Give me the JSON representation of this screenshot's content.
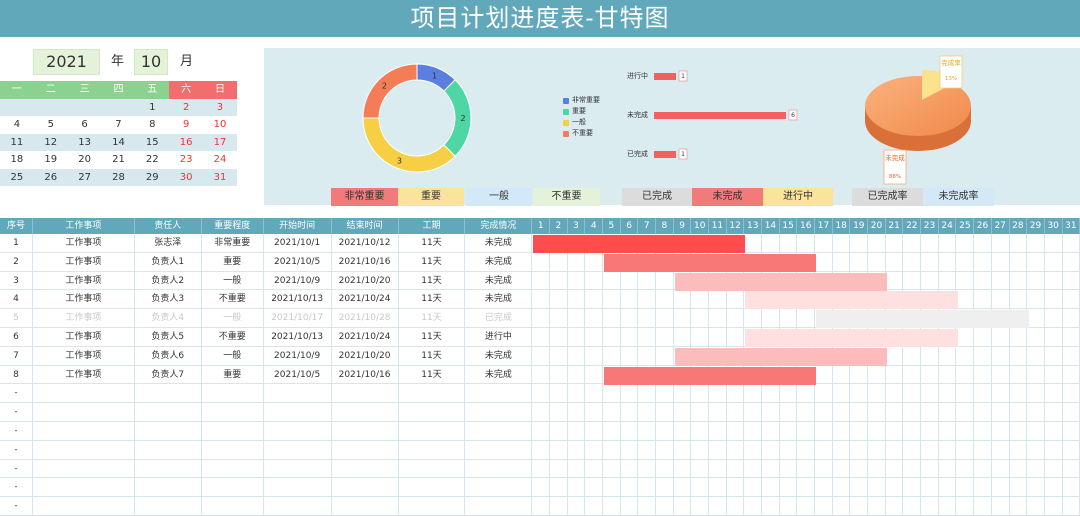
{
  "title": "项目计划进度表-甘特图",
  "calendar": {
    "year": "2021",
    "year_label": "年",
    "month": "10",
    "month_label": "月",
    "weekdays": [
      "一",
      "二",
      "三",
      "四",
      "五",
      "六",
      "日"
    ],
    "weeks": [
      [
        "",
        "",
        "",
        "",
        "1",
        "2",
        "3"
      ],
      [
        "4",
        "5",
        "6",
        "7",
        "8",
        "9",
        "10"
      ],
      [
        "11",
        "12",
        "13",
        "14",
        "15",
        "16",
        "17"
      ],
      [
        "18",
        "19",
        "20",
        "21",
        "22",
        "23",
        "24"
      ],
      [
        "25",
        "26",
        "27",
        "28",
        "29",
        "30",
        "31"
      ]
    ]
  },
  "donut": {
    "segments": [
      {
        "name": "非常重要",
        "value": 1,
        "color": "#5b7fe0"
      },
      {
        "name": "重要",
        "value": 2,
        "color": "#4fd6a5"
      },
      {
        "name": "一般",
        "value": 3,
        "color": "#f6cf45"
      },
      {
        "name": "不重要",
        "value": 2,
        "color": "#f47c57"
      }
    ],
    "labels": [
      "1",
      "2",
      "3",
      "2"
    ]
  },
  "status_bars": {
    "items": [
      {
        "label": "进行中",
        "value": 1
      },
      {
        "label": "未完成",
        "value": 6
      },
      {
        "label": "已完成",
        "value": 1
      }
    ],
    "max": 6,
    "color": "#f06262"
  },
  "pie": {
    "done_label": "完成率",
    "done_value": "13%",
    "undone_label": "未完成",
    "undone_value": "88%",
    "done_fraction": 0.13
  },
  "legend": [
    {
      "label": "非常重要",
      "bg": "#f27a7a"
    },
    {
      "label": "重要",
      "bg": "#fce39b"
    },
    {
      "label": "一般",
      "bg": "#d3e9f7"
    },
    {
      "label": "不重要",
      "bg": "#e3f2d8"
    },
    {
      "label": "已完成",
      "bg": "#dcdcdc"
    },
    {
      "label": "未完成",
      "bg": "#f27a7a"
    },
    {
      "label": "进行中",
      "bg": "#fce39b"
    },
    {
      "label": "已完成率",
      "bg": "#dcdcdc"
    },
    {
      "label": "未完成率",
      "bg": "#d3e9f7"
    }
  ],
  "table": {
    "headers": [
      "序号",
      "工作事项",
      "责任人",
      "重要程度",
      "开始时间",
      "结束时间",
      "工期",
      "完成情况"
    ],
    "days": [
      "1",
      "2",
      "3",
      "4",
      "5",
      "6",
      "7",
      "8",
      "9",
      "10",
      "11",
      "12",
      "13",
      "14",
      "15",
      "16",
      "17",
      "18",
      "19",
      "20",
      "21",
      "22",
      "23",
      "24",
      "25",
      "26",
      "27",
      "28",
      "29",
      "30",
      "31"
    ],
    "rows": [
      {
        "no": "1",
        "task": "工作事项",
        "owner": "张志泽",
        "priority": "非常重要",
        "start": "2021/10/1",
        "end": "2021/10/12",
        "duration": "11天",
        "status": "未完成",
        "bar_start": 1,
        "bar_end": 12,
        "bar_color": "#ff4d4d",
        "faded": false
      },
      {
        "no": "2",
        "task": "工作事项",
        "owner": "负责人1",
        "priority": "重要",
        "start": "2021/10/5",
        "end": "2021/10/16",
        "duration": "11天",
        "status": "未完成",
        "bar_start": 5,
        "bar_end": 16,
        "bar_color": "#f87878",
        "faded": false
      },
      {
        "no": "3",
        "task": "工作事项",
        "owner": "负责人2",
        "priority": "一般",
        "start": "2021/10/9",
        "end": "2021/10/20",
        "duration": "11天",
        "status": "未完成",
        "bar_start": 9,
        "bar_end": 20,
        "bar_color": "#fdbcbc",
        "faded": false
      },
      {
        "no": "4",
        "task": "工作事项",
        "owner": "负责人3",
        "priority": "不重要",
        "start": "2021/10/13",
        "end": "2021/10/24",
        "duration": "11天",
        "status": "未完成",
        "bar_start": 13,
        "bar_end": 24,
        "bar_color": "#fee0e0",
        "faded": false
      },
      {
        "no": "5",
        "task": "工作事项",
        "owner": "负责人4",
        "priority": "一般",
        "start": "2021/10/17",
        "end": "2021/10/28",
        "duration": "11天",
        "status": "已完成",
        "bar_start": 17,
        "bar_end": 28,
        "bar_color": "#efefef",
        "faded": true
      },
      {
        "no": "6",
        "task": "工作事项",
        "owner": "负责人5",
        "priority": "不重要",
        "start": "2021/10/13",
        "end": "2021/10/24",
        "duration": "11天",
        "status": "进行中",
        "bar_start": 13,
        "bar_end": 24,
        "bar_color": "#fee0e0",
        "faded": false
      },
      {
        "no": "7",
        "task": "工作事项",
        "owner": "负责人6",
        "priority": "一般",
        "start": "2021/10/9",
        "end": "2021/10/20",
        "duration": "11天",
        "status": "未完成",
        "bar_start": 9,
        "bar_end": 20,
        "bar_color": "#fdbcbc",
        "faded": false
      },
      {
        "no": "8",
        "task": "工作事项",
        "owner": "负责人7",
        "priority": "重要",
        "start": "2021/10/5",
        "end": "2021/10/16",
        "duration": "11天",
        "status": "未完成",
        "bar_start": 5,
        "bar_end": 16,
        "bar_color": "#f87878",
        "faded": false
      }
    ],
    "empty_marker": "-",
    "empty_rows": 7
  }
}
